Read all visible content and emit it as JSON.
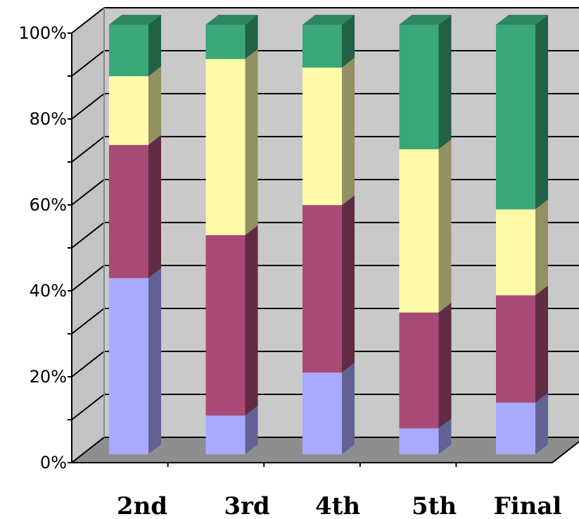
{
  "chart_data": {
    "type": "bar",
    "stacked": true,
    "percent": true,
    "three_d": true,
    "title": "",
    "xlabel": "",
    "ylabel": "",
    "categories": [
      "2nd",
      "3rd",
      "4th",
      "5th",
      "Final"
    ],
    "ylim": [
      0,
      100
    ],
    "yticks": [
      "0%",
      "20%",
      "40%",
      "60%",
      "80%",
      "100%"
    ],
    "grid": true,
    "legend": "none",
    "series": [
      {
        "color": "#a8aaff",
        "values": [
          41,
          9,
          19,
          6,
          12
        ]
      },
      {
        "color": "#a84a76",
        "values": [
          31,
          42,
          39,
          27,
          25
        ]
      },
      {
        "color": "#fefaa8",
        "values": [
          16,
          41,
          32,
          38,
          20
        ]
      },
      {
        "color": "#3aa779",
        "values": [
          12,
          8,
          10,
          29,
          43
        ]
      }
    ],
    "colors": {
      "wall": "#c9c9c9",
      "floor": "#8e8e8e",
      "gridline": "#000000"
    }
  }
}
